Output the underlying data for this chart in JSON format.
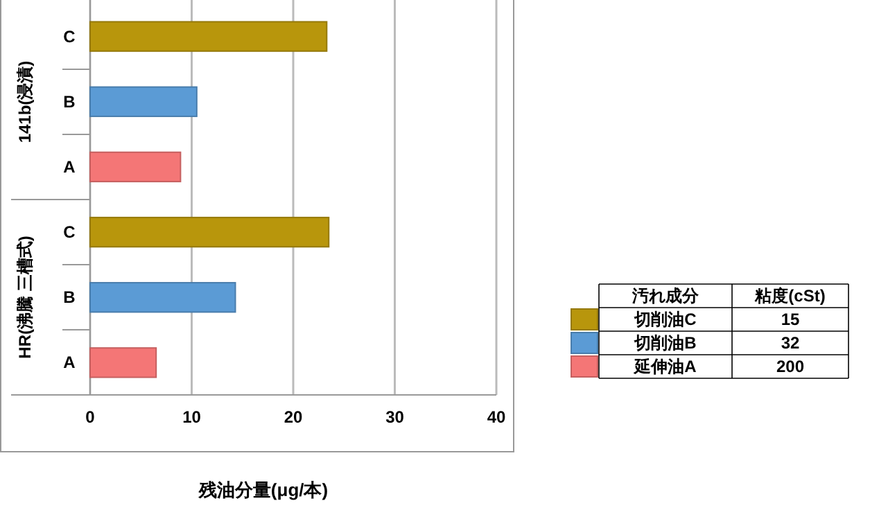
{
  "chart_data": {
    "type": "bar",
    "orientation": "horizontal",
    "stacked": true,
    "categories": [
      "C",
      "B",
      "A",
      "C",
      "B",
      "A"
    ],
    "series": [
      {
        "name": "切削油C",
        "color": "#b8960c",
        "values": [
          23.3,
          null,
          null,
          23.5,
          null,
          null
        ]
      },
      {
        "name": "切削油B",
        "color": "#5b9bd5",
        "values": [
          null,
          10.5,
          null,
          null,
          14.3,
          null
        ]
      },
      {
        "name": "延伸油A",
        "color": "#f47676",
        "values": [
          null,
          null,
          8.9,
          null,
          null,
          6.5
        ]
      }
    ],
    "xlim": [
      0,
      40
    ],
    "xticks": [
      0,
      10,
      20,
      30,
      40
    ],
    "grid": "x",
    "xlabel": "残油分量(μg/本)",
    "legend": "right",
    "legend_title": "汚れ成分",
    "annotations": [
      "141b(浸漬)",
      "HR(沸騰 三槽式)",
      "粘度(cSt)",
      "15",
      "32",
      "200"
    ]
  }
}
